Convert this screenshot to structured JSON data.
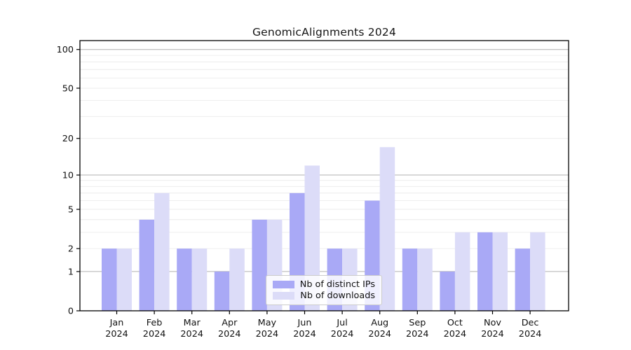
{
  "chart_data": {
    "type": "bar",
    "title": "GenomicAlignments 2024",
    "categories": [
      "Jan",
      "Feb",
      "Mar",
      "Apr",
      "May",
      "Jun",
      "Jul",
      "Aug",
      "Sep",
      "Oct",
      "Nov",
      "Dec"
    ],
    "x_year_label": "2024",
    "series": [
      {
        "name": "Nb of distinct IPs",
        "color": "#a9a9f6",
        "values": [
          2,
          4,
          2,
          1,
          4,
          7,
          2,
          6,
          2,
          1,
          3,
          2
        ]
      },
      {
        "name": "Nb of downloads",
        "color": "#dcdcf8",
        "values": [
          2,
          7,
          2,
          2,
          4,
          12,
          2,
          17,
          2,
          3,
          3,
          3
        ]
      }
    ],
    "y_scale": "log1p",
    "ylim": [
      0,
      100
    ],
    "y_ticks": [
      0,
      1,
      2,
      5,
      10,
      20,
      50,
      100
    ],
    "y_major_gridlines": [
      1,
      10,
      100
    ],
    "y_minor_gridlines": [
      2,
      3,
      4,
      5,
      6,
      7,
      8,
      9,
      20,
      30,
      40,
      50,
      60,
      70,
      80,
      90
    ],
    "grid": "horizontal",
    "legend_position": "inside-bottom-center",
    "colors": {
      "distinct_ips_bar": "#a9a9f6",
      "downloads_bar": "#dcdcf8",
      "major_gridline": "#b0b0b0",
      "minor_gridline": "#e8e8e8",
      "axis_line": "#000000",
      "text": "#111111"
    }
  }
}
